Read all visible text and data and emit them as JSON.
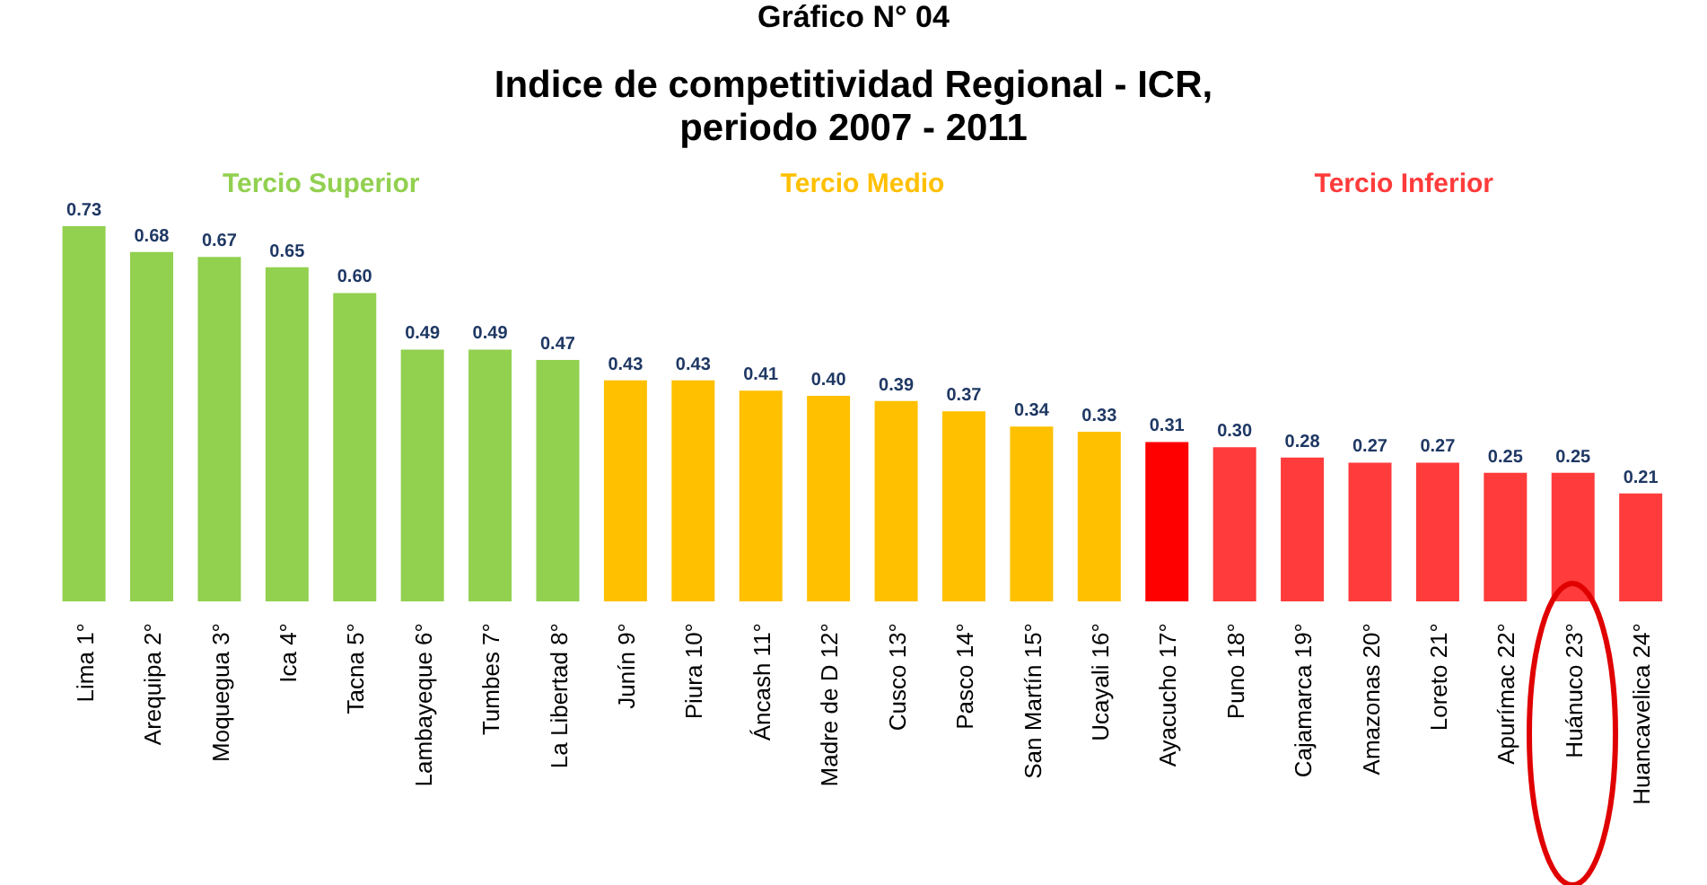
{
  "chart_data": {
    "type": "bar",
    "title": "Indice de competitividad  Regional - ICR,\nperiodo 2007 - 2011",
    "categories": [
      "Lima 1°",
      "Arequipa 2°",
      "Moquegua 3°",
      "Ica 4°",
      "Tacna 5°",
      "Lambayeque 6°",
      "Tumbes 7°",
      "La Libertad 8°",
      "Junín 9°",
      "Piura 10°",
      "Áncash 11°",
      "Madre de D 12°",
      "Cusco 13°",
      "Pasco 14°",
      "San Martín 15°",
      "Ucayali 16°",
      "Ayacucho 17°",
      "Puno 18°",
      "Cajamarca 19°",
      "Amazonas 20°",
      "Loreto 21°",
      "Apurímac 22°",
      "Huánuco 23°",
      "Huancavelica 24°"
    ],
    "values": [
      0.73,
      0.68,
      0.67,
      0.65,
      0.6,
      0.49,
      0.49,
      0.47,
      0.43,
      0.43,
      0.41,
      0.4,
      0.39,
      0.37,
      0.34,
      0.33,
      0.31,
      0.3,
      0.28,
      0.27,
      0.27,
      0.25,
      0.25,
      0.21
    ],
    "value_labels": [
      "0.73",
      "0.68",
      "0.67",
      "0.65",
      "0.60",
      "0.49",
      "0.49",
      "0.47",
      "0.43",
      "0.43",
      "0.41",
      "0.40",
      "0.39",
      "0.37",
      "0.34",
      "0.33",
      "0.31",
      "0.30",
      "0.28",
      "0.27",
      "0.27",
      "0.25",
      "0.25",
      "0.21"
    ],
    "colors": [
      "#92d050",
      "#92d050",
      "#92d050",
      "#92d050",
      "#92d050",
      "#92d050",
      "#92d050",
      "#92d050",
      "#ffc000",
      "#ffc000",
      "#ffc000",
      "#ffc000",
      "#ffc000",
      "#ffc000",
      "#ffc000",
      "#ffc000",
      "#ff0000",
      "#ff3b3b",
      "#ff3b3b",
      "#ff3b3b",
      "#ff3b3b",
      "#ff3b3b",
      "#ff3b3b",
      "#ff3b3b"
    ],
    "annotations": [
      "Gráfico N° 04",
      "Tercio Superior",
      "Tercio Medio",
      "Tercio Inferior"
    ]
  }
}
